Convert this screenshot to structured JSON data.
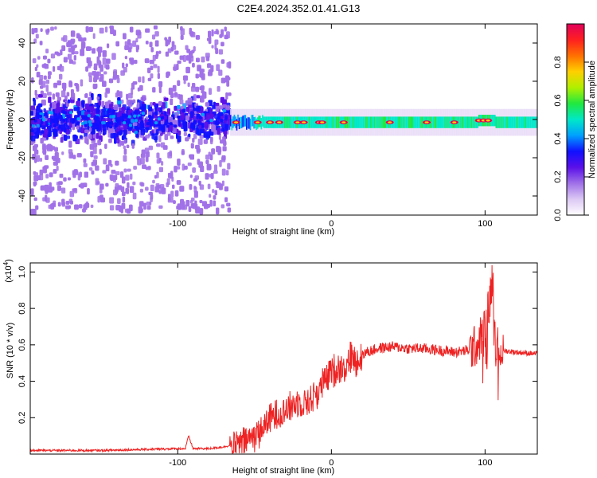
{
  "title": "C2E4.2024.352.01.41.G13",
  "chart_data": [
    {
      "type": "heatmap",
      "xlabel": "Height of straight line (km)",
      "ylabel": "Frequency (Hz)",
      "xlim": [
        -196,
        134
      ],
      "ylim": [
        -50,
        50
      ],
      "xticks": [
        -100,
        0,
        100
      ],
      "yticks": [
        -40,
        -20,
        0,
        20,
        40
      ],
      "colorbar": {
        "label": "Normalized spectral amplitude",
        "range": [
          0,
          1
        ],
        "ticks": [
          0.0,
          0.2,
          0.4,
          0.6,
          0.8
        ],
        "colors": [
          "#ffffff",
          "#dcc8f4",
          "#a070e8",
          "#5a10e8",
          "#1010ff",
          "#00a0ff",
          "#00e8c8",
          "#20e840",
          "#b0f000",
          "#ffd000",
          "#ff7000",
          "#ff2020",
          "#e0005a"
        ]
      },
      "regions": [
        {
          "x": [
            -196,
            -66
          ],
          "description_kind": "broadband",
          "freq_spread": 48
        },
        {
          "x": [
            -66,
            134
          ],
          "description_kind": "narrowband",
          "freq_center": -1.5,
          "freq_spread": 3
        }
      ]
    },
    {
      "type": "line",
      "xlabel": "Height of straight line (km)",
      "ylabel": "SNR (10 * v/v)",
      "yscale_label": "(x10^4)",
      "xlim": [
        -196,
        134
      ],
      "ylim": [
        0,
        1.05
      ],
      "xticks": [
        -100,
        0,
        100
      ],
      "yticks": [
        0.2,
        0.4,
        0.6,
        0.8,
        1.0
      ],
      "series": [
        {
          "color": "#ee2222",
          "x": [
            -196,
            -150,
            -100,
            -95,
            -93,
            -90,
            -80,
            -70,
            -60,
            -50,
            -45,
            -40,
            -35,
            -30,
            -25,
            -20,
            -15,
            -10,
            -5,
            0,
            5,
            10,
            13,
            15,
            20,
            30,
            40,
            50,
            60,
            70,
            80,
            90,
            95,
            100,
            103,
            105,
            107,
            110,
            120,
            134
          ],
          "values": [
            0.02,
            0.02,
            0.03,
            0.03,
            0.1,
            0.03,
            0.03,
            0.04,
            0.06,
            0.11,
            0.15,
            0.2,
            0.23,
            0.25,
            0.28,
            0.3,
            0.3,
            0.34,
            0.4,
            0.46,
            0.48,
            0.5,
            0.55,
            0.52,
            0.55,
            0.58,
            0.59,
            0.58,
            0.58,
            0.57,
            0.56,
            0.57,
            0.6,
            0.7,
            0.82,
            1.0,
            0.6,
            0.57,
            0.56,
            0.55
          ]
        }
      ]
    }
  ]
}
